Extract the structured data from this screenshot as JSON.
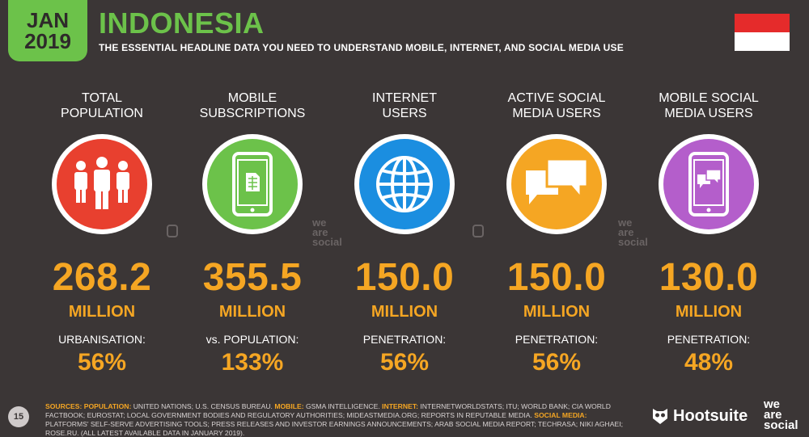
{
  "header": {
    "month": "JAN",
    "year": "2019",
    "title": "INDONESIA",
    "subtitle": "THE ESSENTIAL HEADLINE DATA YOU NEED TO UNDERSTAND MOBILE, INTERNET, AND SOCIAL MEDIA USE"
  },
  "colors": {
    "background": "#3b3636",
    "accent_green": "#6cc24a",
    "value_orange": "#f5a623"
  },
  "stats": [
    {
      "label_line1": "TOTAL",
      "label_line2": "POPULATION",
      "icon": "people-icon",
      "circle_color": "#e8402f",
      "value": "268.2",
      "unit": "MILLION",
      "sublabel": "URBANISATION:",
      "subvalue": "56%"
    },
    {
      "label_line1": "MOBILE",
      "label_line2": "SUBSCRIPTIONS",
      "icon": "mobile-sim-icon",
      "circle_color": "#6cc24a",
      "value": "355.5",
      "unit": "MILLION",
      "sublabel": "vs. POPULATION:",
      "subvalue": "133%"
    },
    {
      "label_line1": "INTERNET",
      "label_line2": "USERS",
      "icon": "globe-icon",
      "circle_color": "#1b8ee0",
      "value": "150.0",
      "unit": "MILLION",
      "sublabel": "PENETRATION:",
      "subvalue": "56%"
    },
    {
      "label_line1": "ACTIVE SOCIAL",
      "label_line2": "MEDIA USERS",
      "icon": "chat-bubbles-icon",
      "circle_color": "#f5a623",
      "value": "150.0",
      "unit": "MILLION",
      "sublabel": "PENETRATION:",
      "subvalue": "56%"
    },
    {
      "label_line1": "MOBILE SOCIAL",
      "label_line2": "MEDIA USERS",
      "icon": "mobile-chat-icon",
      "circle_color": "#b45ecb",
      "value": "130.0",
      "unit": "MILLION",
      "sublabel": "PENETRATION:",
      "subvalue": "48%"
    }
  ],
  "watermark": {
    "line1": "we",
    "line2": "are",
    "line3": "social"
  },
  "footer": {
    "page_number": "15",
    "sources_label": "SOURCES:",
    "population_label": "POPULATION:",
    "population_text": "UNITED NATIONS; U.S. CENSUS BUREAU.",
    "mobile_label": "MOBILE:",
    "mobile_text": "GSMA INTELLIGENCE.",
    "internet_label": "INTERNET:",
    "internet_text": "INTERNETWORLDSTATS; ITU; WORLD BANK; CIA WORLD FACTBOOK; EUROSTAT; LOCAL GOVERNMENT BODIES AND REGULATORY AUTHORITIES; MIDEASTMEDIA.ORG; REPORTS IN REPUTABLE MEDIA.",
    "social_label": "SOCIAL MEDIA:",
    "social_text": "PLATFORMS' SELF-SERVE ADVERTISING TOOLS; PRESS RELEASES AND INVESTOR EARNINGS ANNOUNCEMENTS; ARAB SOCIAL MEDIA REPORT; TECHRASA; NIKI AGHAEI; ROSE.RU. (ALL LATEST AVAILABLE DATA IN JANUARY 2019).",
    "hootsuite": "Hootsuite",
    "was_line1": "we",
    "was_line2": "are",
    "was_line3": "social"
  }
}
